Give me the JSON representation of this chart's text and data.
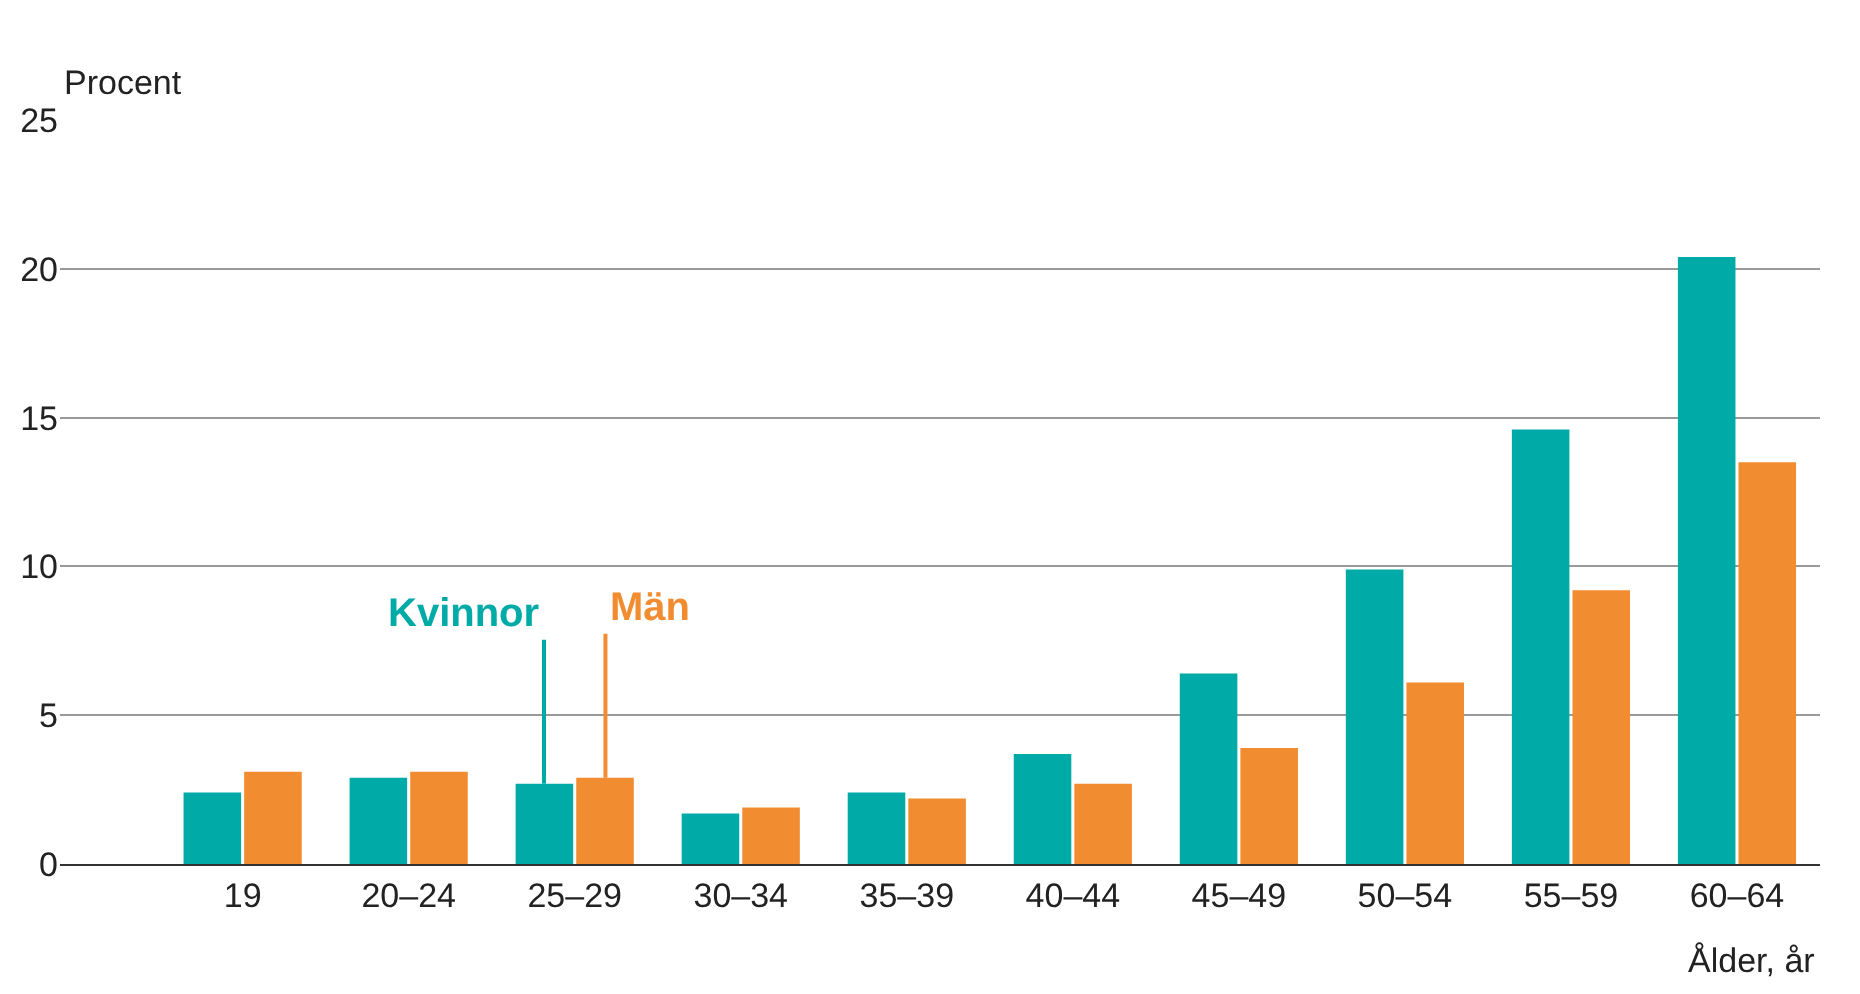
{
  "chart_data": {
    "type": "bar",
    "ylabel": "Procent",
    "xlabel": "Ålder, år",
    "categories": [
      "19",
      "20–24",
      "25–29",
      "30–34",
      "35–39",
      "40–44",
      "45–49",
      "50–54",
      "55–59",
      "60–64"
    ],
    "series": [
      {
        "name": "Kvinnor",
        "color": "#00aaa6",
        "values": [
          2.4,
          2.9,
          2.7,
          1.7,
          2.4,
          3.7,
          6.4,
          9.9,
          14.6,
          20.4
        ]
      },
      {
        "name": "Män",
        "color": "#f28c30",
        "values": [
          3.1,
          3.1,
          2.9,
          1.9,
          2.2,
          2.7,
          3.9,
          6.1,
          9.2,
          13.5
        ]
      }
    ],
    "ylim": [
      0,
      25
    ],
    "yticks": [
      0,
      5,
      10,
      15,
      20,
      25
    ],
    "grid": "y",
    "legend": false
  }
}
